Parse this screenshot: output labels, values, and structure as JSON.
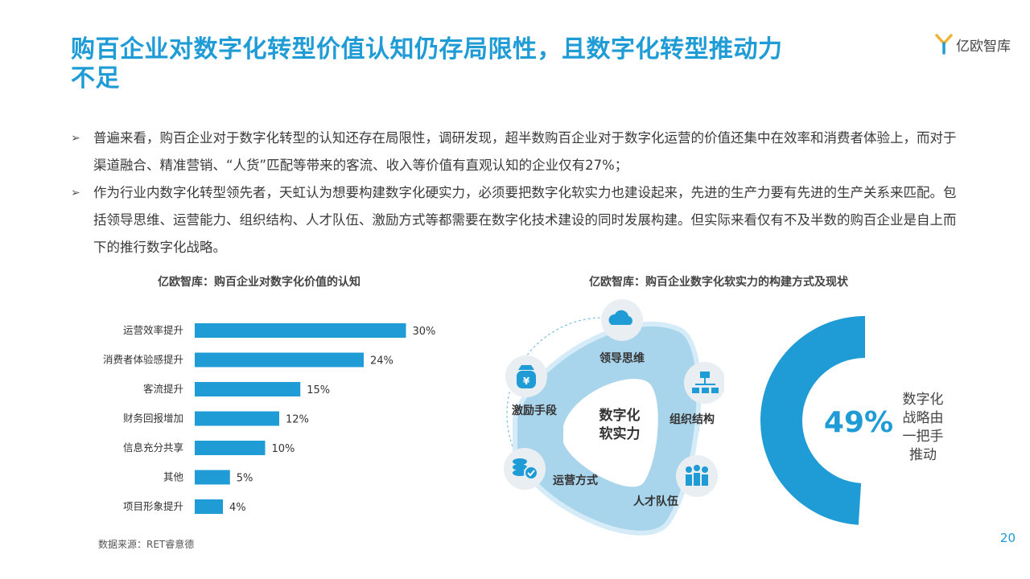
{
  "page": {
    "title": "购百企业对数字化转型价值认知仍存局限性，且数字化转型推动力不足",
    "logo_text": "亿欧智库",
    "page_number": "20",
    "accent_color": "#1f9bd6"
  },
  "bullets": [
    "普遍来看，购百企业对于数字化转型的认知还存在局限性，调研发现，超半数购百企业对于数字化运营的价值还集中在效率和消费者体验上，而对于渠道融合、精准营销、“人货”匹配等带来的客流、收入等价值有直观认知的企业仅有27%；",
    "作为行业内数字化转型领先者，天虹认为想要构建数字化硬实力，必须要把数字化软实力也建设起来，先进的生产力要有先进的生产关系来匹配。包括领导思维、运营能力、组织结构、人才队伍、激励方式等都需要在数字化技术建设的同时发展构建。但实际来看仅有不及半数的购百企业是自上而下的推行数字化战略。"
  ],
  "chart_data": [
    {
      "type": "bar",
      "orientation": "horizontal",
      "title": "亿欧智库：购百企业对数字化价值的认知",
      "categories": [
        "运营效率提升",
        "消费者体验感提升",
        "客流提升",
        "财务回报增加",
        "信息充分共享",
        "其他",
        "项目形象提升"
      ],
      "values": [
        30,
        24,
        15,
        12,
        10,
        5,
        4
      ],
      "value_suffix": "%",
      "color": "#1f9bd6",
      "source": "数据来源：RET睿意德"
    },
    {
      "type": "pie",
      "variant": "donut",
      "title": "亿欧智库：购百企业数字化软实力的构建方式及现状",
      "values": [
        49
      ],
      "value_label": "49%",
      "label": "数字化战略由一把手推动",
      "color": "#1f9bd6"
    }
  ],
  "diagram": {
    "center_label": "数字化软实力",
    "nodes": [
      {
        "label": "领导思维",
        "icon": "cloud-icon"
      },
      {
        "label": "组织结构",
        "icon": "org-chart-icon"
      },
      {
        "label": "人才队伍",
        "icon": "people-icon"
      },
      {
        "label": "运营方式",
        "icon": "coins-check-icon"
      },
      {
        "label": "激励手段",
        "icon": "money-bag-icon"
      }
    ]
  },
  "donut_text_lines": [
    "数字化",
    "战略由",
    "一把手",
    "推动"
  ]
}
